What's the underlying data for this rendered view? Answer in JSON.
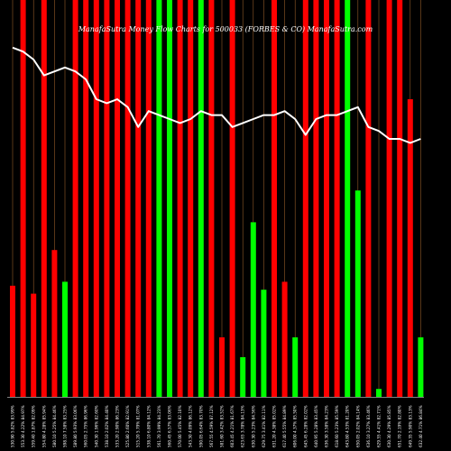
{
  "chart_data": {
    "type": "bar",
    "title": "MunafaSutra  Money Flow  Charts for 500033  (FORBES & CO)  MunafaSutra.com",
    "bar_colors": {
      "up": "#00ff00",
      "down": "#ff0000"
    },
    "line_color": "#ffffff",
    "grid_color": "#b87333",
    "background": "#000000",
    "ylim": [
      0,
      100
    ],
    "categories": [
      "530.90 5.82% 83.99%",
      "553.30 4.22% 84.97%",
      "559.40 1.87% 82.09%",
      "554.80 4.28% 85.94%",
      "580.10 5.25% 84.46%",
      "598.10 7.58% 83.25%",
      "589.80 5.93% 83.06%",
      "560.05 2.75% 86.96%",
      "540.30 1.96% 82.60%",
      "538.10 2.02% 84.40%",
      "533.20 2.90% 86.23%",
      "525.80 2.60% 82.91%",
      "515.20 5.79% 81.07%",
      "538.10 6.80% 84.12%",
      "561.70 3.99% 84.23%",
      "560.45 6.57% 83.06%",
      "570.00 5.45% 82.10%",
      "543.30 4.09% 86.12%",
      "590.05 6.64% 83.70%",
      "567.55 4.59% 87.12%",
      "581.60 3.42% 83.52%",
      "603.45 4.21% 81.67%",
      "623.65 3.78% 84.13%",
      "630.30 5.23% 84.56%",
      "629.75 3.41% 82.11%",
      "631.20 4.38% 85.02%",
      "617.40 5.55% 84.89%",
      "606.00 4.37% 85.50%",
      "645.45 6.28% 82.02%",
      "640.95 5.28% 83.45%",
      "636.30 3.58% 84.23%",
      "618.60 5.23% 85.59%",
      "643.80 4.53% 81.20%",
      "650.05 2.02% 84.14%",
      "636.10 3.27% 83.46%",
      "629.55 4.41% 82.71%",
      "630.30 4.29% 85.85%",
      "651.70 2.19% 82.80%",
      "649.35 5.90% 83.13%",
      "632.40 4.71% 86.84%"
    ],
    "series": [
      {
        "values": [
          28,
          100,
          26,
          100,
          37,
          29,
          100,
          100,
          100,
          100,
          100,
          100,
          100,
          100,
          100,
          100,
          100,
          100,
          100,
          100,
          15,
          100,
          10,
          44,
          27,
          100,
          29,
          15,
          100,
          100,
          100,
          100,
          100,
          52,
          100,
          2,
          100,
          100,
          75,
          15
        ],
        "directions": [
          "down",
          "down",
          "down",
          "down",
          "down",
          "up",
          "down",
          "down",
          "down",
          "down",
          "down",
          "down",
          "down",
          "down",
          "up",
          "up",
          "down",
          "down",
          "up",
          "down",
          "down",
          "down",
          "up",
          "up",
          "up",
          "down",
          "down",
          "up",
          "down",
          "down",
          "down",
          "down",
          "up",
          "up",
          "down",
          "up",
          "down",
          "down",
          "down",
          "up"
        ]
      },
      {
        "values": [
          88,
          87,
          85,
          81,
          82,
          83,
          82,
          80,
          75,
          74,
          75,
          73,
          68,
          72,
          71,
          70,
          69,
          70,
          72,
          71,
          71,
          68,
          69,
          70,
          71,
          71,
          72,
          70,
          66,
          70,
          71,
          71,
          72,
          73,
          68,
          67,
          65,
          65,
          64,
          65
        ]
      }
    ],
    "title_visible": "ManafaSutra  Money Flow  Charts for 500033  (FORBES & CO)  ManafaSutra.com"
  }
}
